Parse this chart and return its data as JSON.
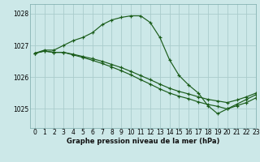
{
  "bg_color": "#cce8e8",
  "grid_color_major": "#aacccc",
  "grid_color_minor": "#bbdddd",
  "line_color": "#1a5c1a",
  "xlabel": "Graphe pression niveau de la mer (hPa)",
  "xlim": [
    -0.5,
    23
  ],
  "ylim": [
    1024.4,
    1028.3
  ],
  "yticks": [
    1025,
    1026,
    1027,
    1028
  ],
  "xticks": [
    0,
    1,
    2,
    3,
    4,
    5,
    6,
    7,
    8,
    9,
    10,
    11,
    12,
    13,
    14,
    15,
    16,
    17,
    18,
    19,
    20,
    21,
    22,
    23
  ],
  "series": [
    {
      "x": [
        0,
        1,
        2,
        3,
        4,
        5,
        6,
        7,
        8,
        9,
        10,
        11,
        12,
        13,
        14,
        15,
        16,
        17,
        18,
        19,
        20,
        21,
        22,
        23
      ],
      "y": [
        1026.75,
        1026.85,
        1026.85,
        1027.0,
        1027.15,
        1027.25,
        1027.4,
        1027.65,
        1027.8,
        1027.88,
        1027.93,
        1027.93,
        1027.72,
        1027.25,
        1026.55,
        1026.05,
        1025.75,
        1025.5,
        1025.1,
        1024.85,
        1025.0,
        1025.15,
        1025.3,
        1025.45
      ]
    },
    {
      "x": [
        0,
        1,
        2,
        3,
        4,
        5,
        6,
        7,
        8,
        9,
        10,
        11,
        12,
        13,
        14,
        15,
        16,
        17,
        18,
        19,
        20,
        21,
        22,
        23
      ],
      "y": [
        1026.75,
        1026.82,
        1026.78,
        1026.78,
        1026.72,
        1026.65,
        1026.58,
        1026.5,
        1026.4,
        1026.3,
        1026.18,
        1026.05,
        1025.92,
        1025.78,
        1025.65,
        1025.55,
        1025.47,
        1025.38,
        1025.3,
        1025.25,
        1025.2,
        1025.28,
        1025.38,
        1025.5
      ]
    },
    {
      "x": [
        0,
        1,
        2,
        3,
        4,
        5,
        6,
        7,
        8,
        9,
        10,
        11,
        12,
        13,
        14,
        15,
        16,
        17,
        18,
        19,
        20,
        21,
        22,
        23
      ],
      "y": [
        1026.75,
        1026.82,
        1026.78,
        1026.78,
        1026.7,
        1026.62,
        1026.53,
        1026.43,
        1026.32,
        1026.2,
        1026.07,
        1025.92,
        1025.78,
        1025.63,
        1025.5,
        1025.4,
        1025.32,
        1025.22,
        1025.14,
        1025.08,
        1025.0,
        1025.1,
        1025.2,
        1025.35
      ]
    }
  ]
}
